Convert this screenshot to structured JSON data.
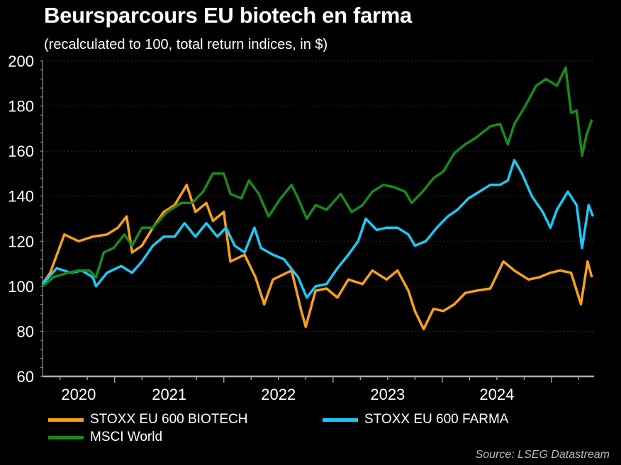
{
  "chart_data": {
    "type": "line",
    "title": "Beursparcours EU biotech en farma",
    "subtitle": "(recalculated to 100, total return indices, in $)",
    "source": "Source: LSEG Datastream",
    "xlabel": "",
    "ylabel": "",
    "xlim": [
      2020.34,
      2025.39
    ],
    "ylim": [
      60,
      200
    ],
    "yticks": [
      60,
      80,
      100,
      120,
      140,
      160,
      180,
      200
    ],
    "xticks": [
      {
        "label": "2020",
        "year": 2020
      },
      {
        "label": "2021",
        "year": 2021
      },
      {
        "label": "2022",
        "year": 2022
      },
      {
        "label": "2023",
        "year": 2023
      },
      {
        "label": "2024",
        "year": 2024
      }
    ],
    "grid": true,
    "legend_position": "bottom",
    "series": [
      {
        "name": "STOXX EU 600 BIOTECH",
        "color": "#f7a11a",
        "points": [
          [
            2020.34,
            101
          ],
          [
            2020.41,
            106
          ],
          [
            2020.54,
            123
          ],
          [
            2020.67,
            120
          ],
          [
            2020.8,
            122
          ],
          [
            2020.93,
            123
          ],
          [
            2021.03,
            126
          ],
          [
            2021.11,
            131
          ],
          [
            2021.16,
            115
          ],
          [
            2021.25,
            118
          ],
          [
            2021.35,
            126
          ],
          [
            2021.45,
            133
          ],
          [
            2021.55,
            136
          ],
          [
            2021.66,
            145
          ],
          [
            2021.74,
            133
          ],
          [
            2021.84,
            137
          ],
          [
            2021.9,
            129
          ],
          [
            2022.0,
            133
          ],
          [
            2022.06,
            111
          ],
          [
            2022.19,
            114
          ],
          [
            2022.29,
            104
          ],
          [
            2022.37,
            92
          ],
          [
            2022.45,
            103
          ],
          [
            2022.62,
            107
          ],
          [
            2022.71,
            89
          ],
          [
            2022.75,
            82
          ],
          [
            2022.84,
            98
          ],
          [
            2022.94,
            99
          ],
          [
            2023.04,
            95
          ],
          [
            2023.14,
            103
          ],
          [
            2023.27,
            101
          ],
          [
            2023.36,
            107
          ],
          [
            2023.49,
            103
          ],
          [
            2023.59,
            107
          ],
          [
            2023.69,
            98
          ],
          [
            2023.75,
            89
          ],
          [
            2023.83,
            81
          ],
          [
            2023.92,
            90
          ],
          [
            2024.01,
            89
          ],
          [
            2024.11,
            92
          ],
          [
            2024.21,
            97
          ],
          [
            2024.31,
            98
          ],
          [
            2024.44,
            99
          ],
          [
            2024.56,
            111
          ],
          [
            2024.66,
            107
          ],
          [
            2024.79,
            103
          ],
          [
            2024.89,
            104
          ],
          [
            2024.99,
            106
          ],
          [
            2025.08,
            107
          ],
          [
            2025.18,
            106
          ],
          [
            2025.27,
            92
          ],
          [
            2025.33,
            111
          ],
          [
            2025.37,
            104
          ]
        ]
      },
      {
        "name": "STOXX EU 600 FARMA",
        "color": "#1ec8f5",
        "points": [
          [
            2020.34,
            101
          ],
          [
            2020.47,
            108
          ],
          [
            2020.6,
            106
          ],
          [
            2020.7,
            107
          ],
          [
            2020.8,
            104
          ],
          [
            2020.83,
            100
          ],
          [
            2020.93,
            106
          ],
          [
            2021.06,
            109
          ],
          [
            2021.16,
            106
          ],
          [
            2021.25,
            111
          ],
          [
            2021.35,
            118
          ],
          [
            2021.45,
            122
          ],
          [
            2021.55,
            122
          ],
          [
            2021.64,
            128
          ],
          [
            2021.74,
            122
          ],
          [
            2021.84,
            128
          ],
          [
            2021.94,
            122
          ],
          [
            2022.02,
            126
          ],
          [
            2022.1,
            118
          ],
          [
            2022.19,
            115
          ],
          [
            2022.28,
            126
          ],
          [
            2022.34,
            117
          ],
          [
            2022.45,
            114
          ],
          [
            2022.55,
            112
          ],
          [
            2022.68,
            104
          ],
          [
            2022.76,
            95
          ],
          [
            2022.84,
            100
          ],
          [
            2022.94,
            101
          ],
          [
            2023.04,
            108
          ],
          [
            2023.14,
            114
          ],
          [
            2023.23,
            120
          ],
          [
            2023.3,
            130
          ],
          [
            2023.4,
            125
          ],
          [
            2023.49,
            126
          ],
          [
            2023.59,
            126
          ],
          [
            2023.69,
            123
          ],
          [
            2023.75,
            118
          ],
          [
            2023.85,
            120
          ],
          [
            2023.95,
            126
          ],
          [
            2024.05,
            131
          ],
          [
            2024.14,
            134
          ],
          [
            2024.24,
            139
          ],
          [
            2024.34,
            142
          ],
          [
            2024.44,
            145
          ],
          [
            2024.53,
            145
          ],
          [
            2024.6,
            147
          ],
          [
            2024.66,
            156
          ],
          [
            2024.73,
            150
          ],
          [
            2024.82,
            140
          ],
          [
            2024.92,
            133
          ],
          [
            2024.99,
            126
          ],
          [
            2025.05,
            134
          ],
          [
            2025.15,
            142
          ],
          [
            2025.23,
            136
          ],
          [
            2025.28,
            117
          ],
          [
            2025.34,
            136
          ],
          [
            2025.38,
            131
          ]
        ]
      },
      {
        "name": "MSCI World",
        "color": "#1a8a1a",
        "points": [
          [
            2020.34,
            100
          ],
          [
            2020.44,
            104
          ],
          [
            2020.57,
            106
          ],
          [
            2020.67,
            107
          ],
          [
            2020.77,
            107
          ],
          [
            2020.83,
            104
          ],
          [
            2020.9,
            115
          ],
          [
            2020.99,
            117
          ],
          [
            2021.09,
            123
          ],
          [
            2021.16,
            118
          ],
          [
            2021.25,
            126
          ],
          [
            2021.35,
            126
          ],
          [
            2021.48,
            133
          ],
          [
            2021.61,
            137
          ],
          [
            2021.71,
            137
          ],
          [
            2021.81,
            142
          ],
          [
            2021.9,
            150
          ],
          [
            2022.0,
            150
          ],
          [
            2022.06,
            141
          ],
          [
            2022.16,
            139
          ],
          [
            2022.23,
            147
          ],
          [
            2022.32,
            141
          ],
          [
            2022.41,
            131
          ],
          [
            2022.52,
            139
          ],
          [
            2022.62,
            145
          ],
          [
            2022.68,
            139
          ],
          [
            2022.76,
            130
          ],
          [
            2022.84,
            136
          ],
          [
            2022.94,
            134
          ],
          [
            2023.07,
            141
          ],
          [
            2023.17,
            133
          ],
          [
            2023.27,
            136
          ],
          [
            2023.36,
            142
          ],
          [
            2023.46,
            145
          ],
          [
            2023.56,
            144
          ],
          [
            2023.66,
            142
          ],
          [
            2023.72,
            137
          ],
          [
            2023.82,
            142
          ],
          [
            2023.92,
            148
          ],
          [
            2024.01,
            151
          ],
          [
            2024.11,
            159
          ],
          [
            2024.21,
            163
          ],
          [
            2024.31,
            166
          ],
          [
            2024.44,
            171
          ],
          [
            2024.53,
            172
          ],
          [
            2024.6,
            163
          ],
          [
            2024.66,
            172
          ],
          [
            2024.76,
            180
          ],
          [
            2024.86,
            189
          ],
          [
            2024.95,
            192
          ],
          [
            2025.05,
            189
          ],
          [
            2025.13,
            197
          ],
          [
            2025.18,
            177
          ],
          [
            2025.23,
            178
          ],
          [
            2025.28,
            158
          ],
          [
            2025.32,
            167
          ],
          [
            2025.37,
            174
          ]
        ]
      }
    ]
  }
}
